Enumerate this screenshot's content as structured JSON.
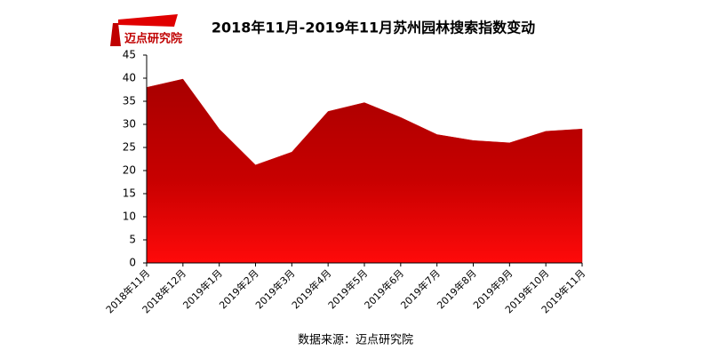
{
  "logo": {
    "name": "迈点研究院"
  },
  "chart_data": {
    "type": "area",
    "title": "2018年11月-2019年11月苏州园林搜索指数变动",
    "source": "数据来源：迈点研究院",
    "categories": [
      "2018年11月",
      "2018年12月",
      "2019年1月",
      "2019年2月",
      "2019年3月",
      "2019年4月",
      "2019年5月",
      "2019年6月",
      "2019年7月",
      "2019年8月",
      "2019年9月",
      "2019年10月",
      "2019年11月"
    ],
    "values": [
      38,
      39.8,
      29,
      21.2,
      24,
      32.8,
      34.7,
      31.5,
      27.8,
      26.5,
      26,
      28.5,
      29
    ],
    "color": "#c00000",
    "ylim": [
      0,
      45
    ],
    "yticks": [
      0,
      5,
      10,
      15,
      20,
      25,
      30,
      35,
      40,
      45
    ],
    "grid": false
  }
}
